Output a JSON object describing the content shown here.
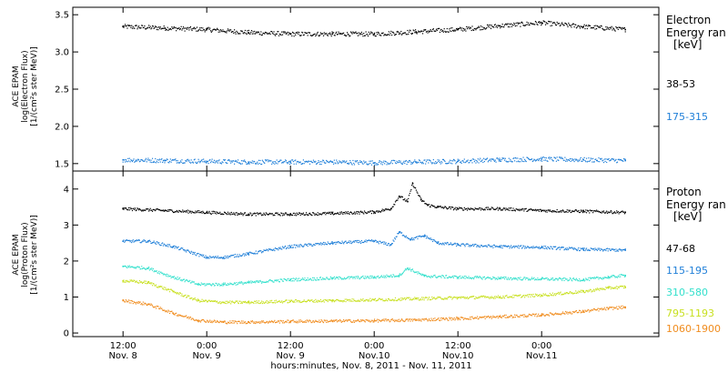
{
  "chart_data": [
    {
      "type": "scatter",
      "panel": "electron",
      "ylabel_lines": [
        "ACE EPAM",
        "log(Electron Flux)",
        "[1/(cm²s ster MeV)]"
      ],
      "ylim": [
        1.4,
        3.6
      ],
      "yticks": [
        1.5,
        2.0,
        2.5,
        3.0,
        3.5
      ],
      "ytick_labels": [
        "1.5",
        "2.0",
        "2.5",
        "3.0",
        "3.5"
      ],
      "legend_title_lines": [
        "Electron",
        "Energy ran",
        "[keV]"
      ],
      "series": [
        {
          "name": "38-53",
          "color": "#000000",
          "x": [
            0.0,
            0.25,
            0.5,
            0.75,
            1.0,
            1.25,
            1.5,
            1.75,
            2.0,
            2.25,
            2.5,
            2.75,
            3.0
          ],
          "y": [
            3.34,
            3.32,
            3.3,
            3.26,
            3.24,
            3.24,
            3.24,
            3.27,
            3.3,
            3.35,
            3.39,
            3.34,
            3.3
          ]
        },
        {
          "name": "175-315",
          "color": "#1f7fd8",
          "x": [
            0.0,
            0.25,
            0.5,
            0.75,
            1.0,
            1.25,
            1.5,
            1.75,
            2.0,
            2.25,
            2.5,
            2.75,
            3.0
          ],
          "y": [
            1.55,
            1.54,
            1.53,
            1.52,
            1.52,
            1.52,
            1.51,
            1.52,
            1.53,
            1.55,
            1.56,
            1.55,
            1.54
          ]
        }
      ]
    },
    {
      "type": "scatter",
      "panel": "proton",
      "ylabel_lines": [
        "ACE EPAM",
        "log(Proton Flux)",
        "[1/(cm²s ster MeV)]"
      ],
      "ylim": [
        -0.1,
        4.5
      ],
      "yticks": [
        0,
        1,
        2,
        3,
        4
      ],
      "ytick_labels": [
        "0",
        "1",
        "2",
        "3",
        "4"
      ],
      "legend_title_lines": [
        "Proton",
        "Energy ran",
        "[keV]"
      ],
      "series": [
        {
          "name": "47-68",
          "color": "#000000",
          "x": [
            0.0,
            0.25,
            0.5,
            0.75,
            1.0,
            1.25,
            1.5,
            1.6,
            1.65,
            1.7,
            1.73,
            1.78,
            1.82,
            1.88,
            2.0,
            2.25,
            2.5,
            2.75,
            3.0
          ],
          "y": [
            3.45,
            3.4,
            3.35,
            3.3,
            3.3,
            3.32,
            3.36,
            3.45,
            3.8,
            3.65,
            4.15,
            3.7,
            3.55,
            3.5,
            3.45,
            3.45,
            3.4,
            3.38,
            3.35
          ]
        },
        {
          "name": "115-195",
          "color": "#1f7fd8",
          "x": [
            0.0,
            0.15,
            0.3,
            0.5,
            0.6,
            0.75,
            1.0,
            1.25,
            1.5,
            1.6,
            1.65,
            1.72,
            1.8,
            1.88,
            2.0,
            2.25,
            2.5,
            2.75,
            3.0
          ],
          "y": [
            2.55,
            2.55,
            2.4,
            2.1,
            2.1,
            2.2,
            2.4,
            2.5,
            2.55,
            2.45,
            2.8,
            2.6,
            2.7,
            2.5,
            2.45,
            2.4,
            2.38,
            2.32,
            2.3
          ]
        },
        {
          "name": "310-580",
          "color": "#33e0cc",
          "x": [
            0.0,
            0.15,
            0.3,
            0.45,
            0.6,
            0.75,
            1.0,
            1.25,
            1.5,
            1.65,
            1.7,
            1.8,
            2.0,
            2.25,
            2.5,
            2.75,
            2.9,
            3.0
          ],
          "y": [
            1.85,
            1.8,
            1.55,
            1.35,
            1.35,
            1.4,
            1.48,
            1.52,
            1.55,
            1.6,
            1.8,
            1.58,
            1.55,
            1.52,
            1.5,
            1.48,
            1.55,
            1.6
          ]
        },
        {
          "name": "795-1193",
          "color": "#c8e020",
          "x": [
            0.0,
            0.15,
            0.3,
            0.45,
            0.6,
            0.75,
            1.0,
            1.25,
            1.5,
            1.75,
            2.0,
            2.25,
            2.5,
            2.75,
            2.9,
            3.0
          ],
          "y": [
            1.45,
            1.4,
            1.15,
            0.9,
            0.85,
            0.85,
            0.88,
            0.9,
            0.92,
            0.95,
            0.98,
            1.0,
            1.05,
            1.15,
            1.25,
            1.28
          ]
        },
        {
          "name": "1060-1900",
          "color": "#f08c1e",
          "x": [
            0.0,
            0.15,
            0.3,
            0.45,
            0.6,
            0.75,
            1.0,
            1.25,
            1.5,
            1.75,
            2.0,
            2.25,
            2.5,
            2.75,
            2.9,
            3.0
          ],
          "y": [
            0.9,
            0.8,
            0.55,
            0.35,
            0.3,
            0.3,
            0.32,
            0.33,
            0.34,
            0.36,
            0.4,
            0.45,
            0.5,
            0.6,
            0.68,
            0.72
          ]
        }
      ]
    }
  ],
  "x_axis": {
    "range_days": [
      -0.3,
      3.2
    ],
    "ticks": [
      {
        "t": 0.0,
        "time": "12:00",
        "date": "Nov. 8"
      },
      {
        "t": 0.5,
        "time": "0:00",
        "date": "Nov. 9"
      },
      {
        "t": 1.0,
        "time": "12:00",
        "date": "Nov. 9"
      },
      {
        "t": 1.5,
        "time": "0:00",
        "date": "Nov.10"
      },
      {
        "t": 2.0,
        "time": "12:00",
        "date": "Nov.10"
      },
      {
        "t": 2.5,
        "time": "0:00",
        "date": "Nov.11"
      }
    ],
    "label": "hours:minutes, Nov. 8, 2011 - Nov. 11, 2011"
  }
}
